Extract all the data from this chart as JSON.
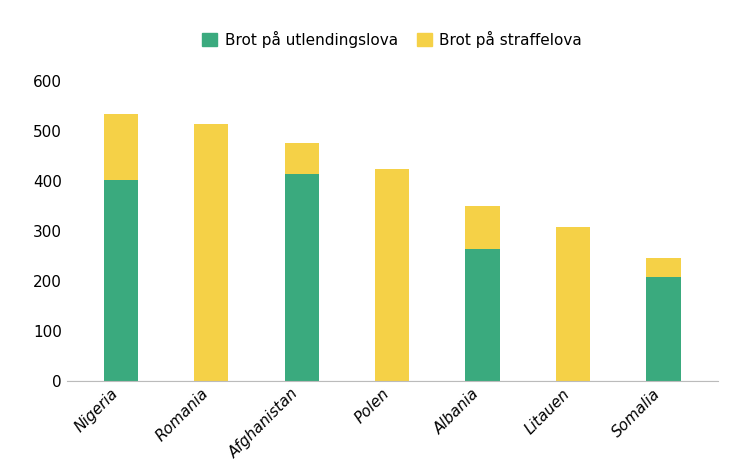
{
  "categories": [
    "Nigeria",
    "Romania",
    "Afghanistan",
    "Polen",
    "Albania",
    "Litauen",
    "Somalia"
  ],
  "utlendingslova": [
    402,
    0,
    414,
    0,
    264,
    0,
    209
  ],
  "straffelova": [
    132,
    513,
    62,
    424,
    87,
    309,
    37
  ],
  "color_utlendingslova": "#3aaa7e",
  "color_straffelova": "#f5d147",
  "legend_utlendingslova": "Brot på utlendingslova",
  "legend_straffelova": "Brot på straffelova",
  "ylim": [
    0,
    650
  ],
  "yticks": [
    0,
    100,
    200,
    300,
    400,
    500,
    600
  ],
  "background_color": "#ffffff",
  "bar_width": 0.38,
  "tick_fontsize": 11,
  "legend_fontsize": 11
}
